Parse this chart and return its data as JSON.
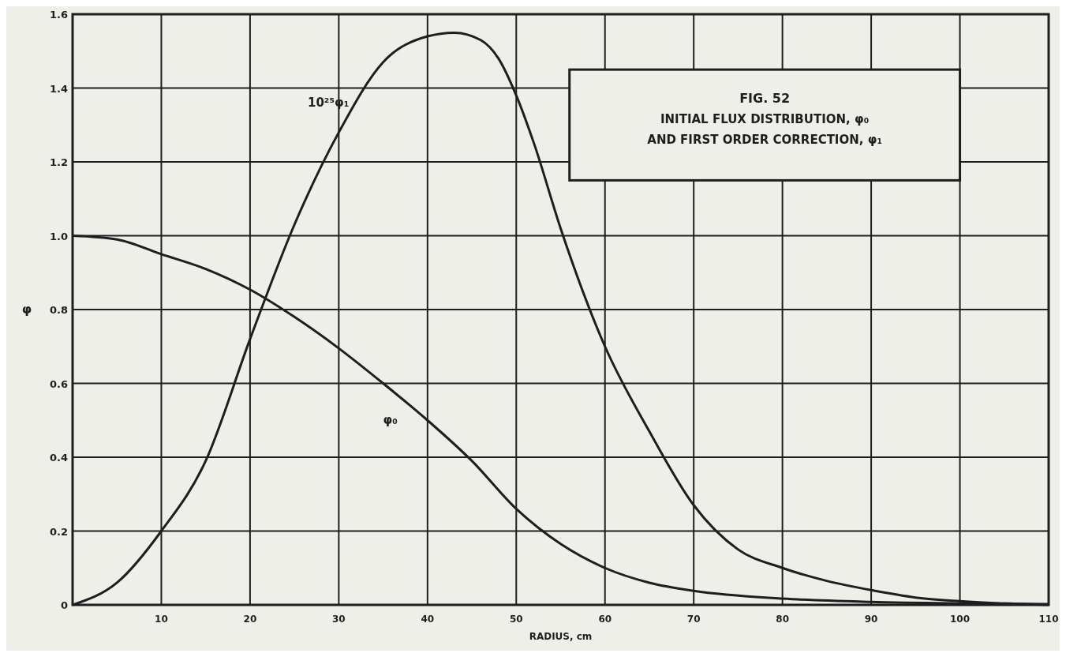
{
  "chart_data": {
    "type": "line",
    "title": "FIG. 52",
    "subtitle": "INITIAL FLUX DISTRIBUTION, φ₀\nAND FIRST ORDER CORRECTION, φ₁",
    "xlabel": "RADIUS, cm",
    "ylabel": "φ",
    "xlim": [
      0,
      110
    ],
    "xticks": [
      10,
      20,
      30,
      40,
      50,
      60,
      70,
      80,
      90,
      100,
      110
    ],
    "ylim": [
      0,
      1.6
    ],
    "yticks": [
      0,
      0.2,
      0.4,
      0.6,
      0.8,
      {
        "value": 1,
        "label": "1.0"
      },
      1.2,
      1.4,
      1.6
    ],
    "grid": true,
    "marker": "none",
    "line_style": "solid",
    "series": [
      {
        "name": "10²⁵φ₁",
        "color": "#1e1e1e",
        "x": [
          0,
          5,
          10,
          15,
          20,
          25,
          30,
          35,
          40,
          43,
          46,
          48,
          50,
          52,
          55,
          60,
          65,
          70,
          75,
          80,
          85,
          90,
          95,
          100,
          110
        ],
        "values": [
          0,
          0.06,
          0.2,
          0.39,
          0.72,
          1.03,
          1.28,
          1.47,
          1.54,
          1.55,
          1.53,
          1.48,
          1.38,
          1.25,
          1.02,
          0.7,
          0.47,
          0.27,
          0.15,
          0.1,
          0.065,
          0.04,
          0.02,
          0.01,
          0
        ]
      },
      {
        "name": "φ₀",
        "color": "#1e1e1e",
        "x": [
          0,
          5,
          10,
          15,
          20,
          25,
          30,
          35,
          40,
          45,
          50,
          55,
          60,
          65,
          70,
          80,
          90,
          100,
          110
        ],
        "values": [
          1.0,
          0.99,
          0.95,
          0.91,
          0.854,
          0.78,
          0.695,
          0.6,
          0.5,
          0.39,
          0.26,
          0.165,
          0.1,
          0.06,
          0.038,
          0.017,
          0.008,
          0.004,
          0.002
        ]
      }
    ]
  }
}
